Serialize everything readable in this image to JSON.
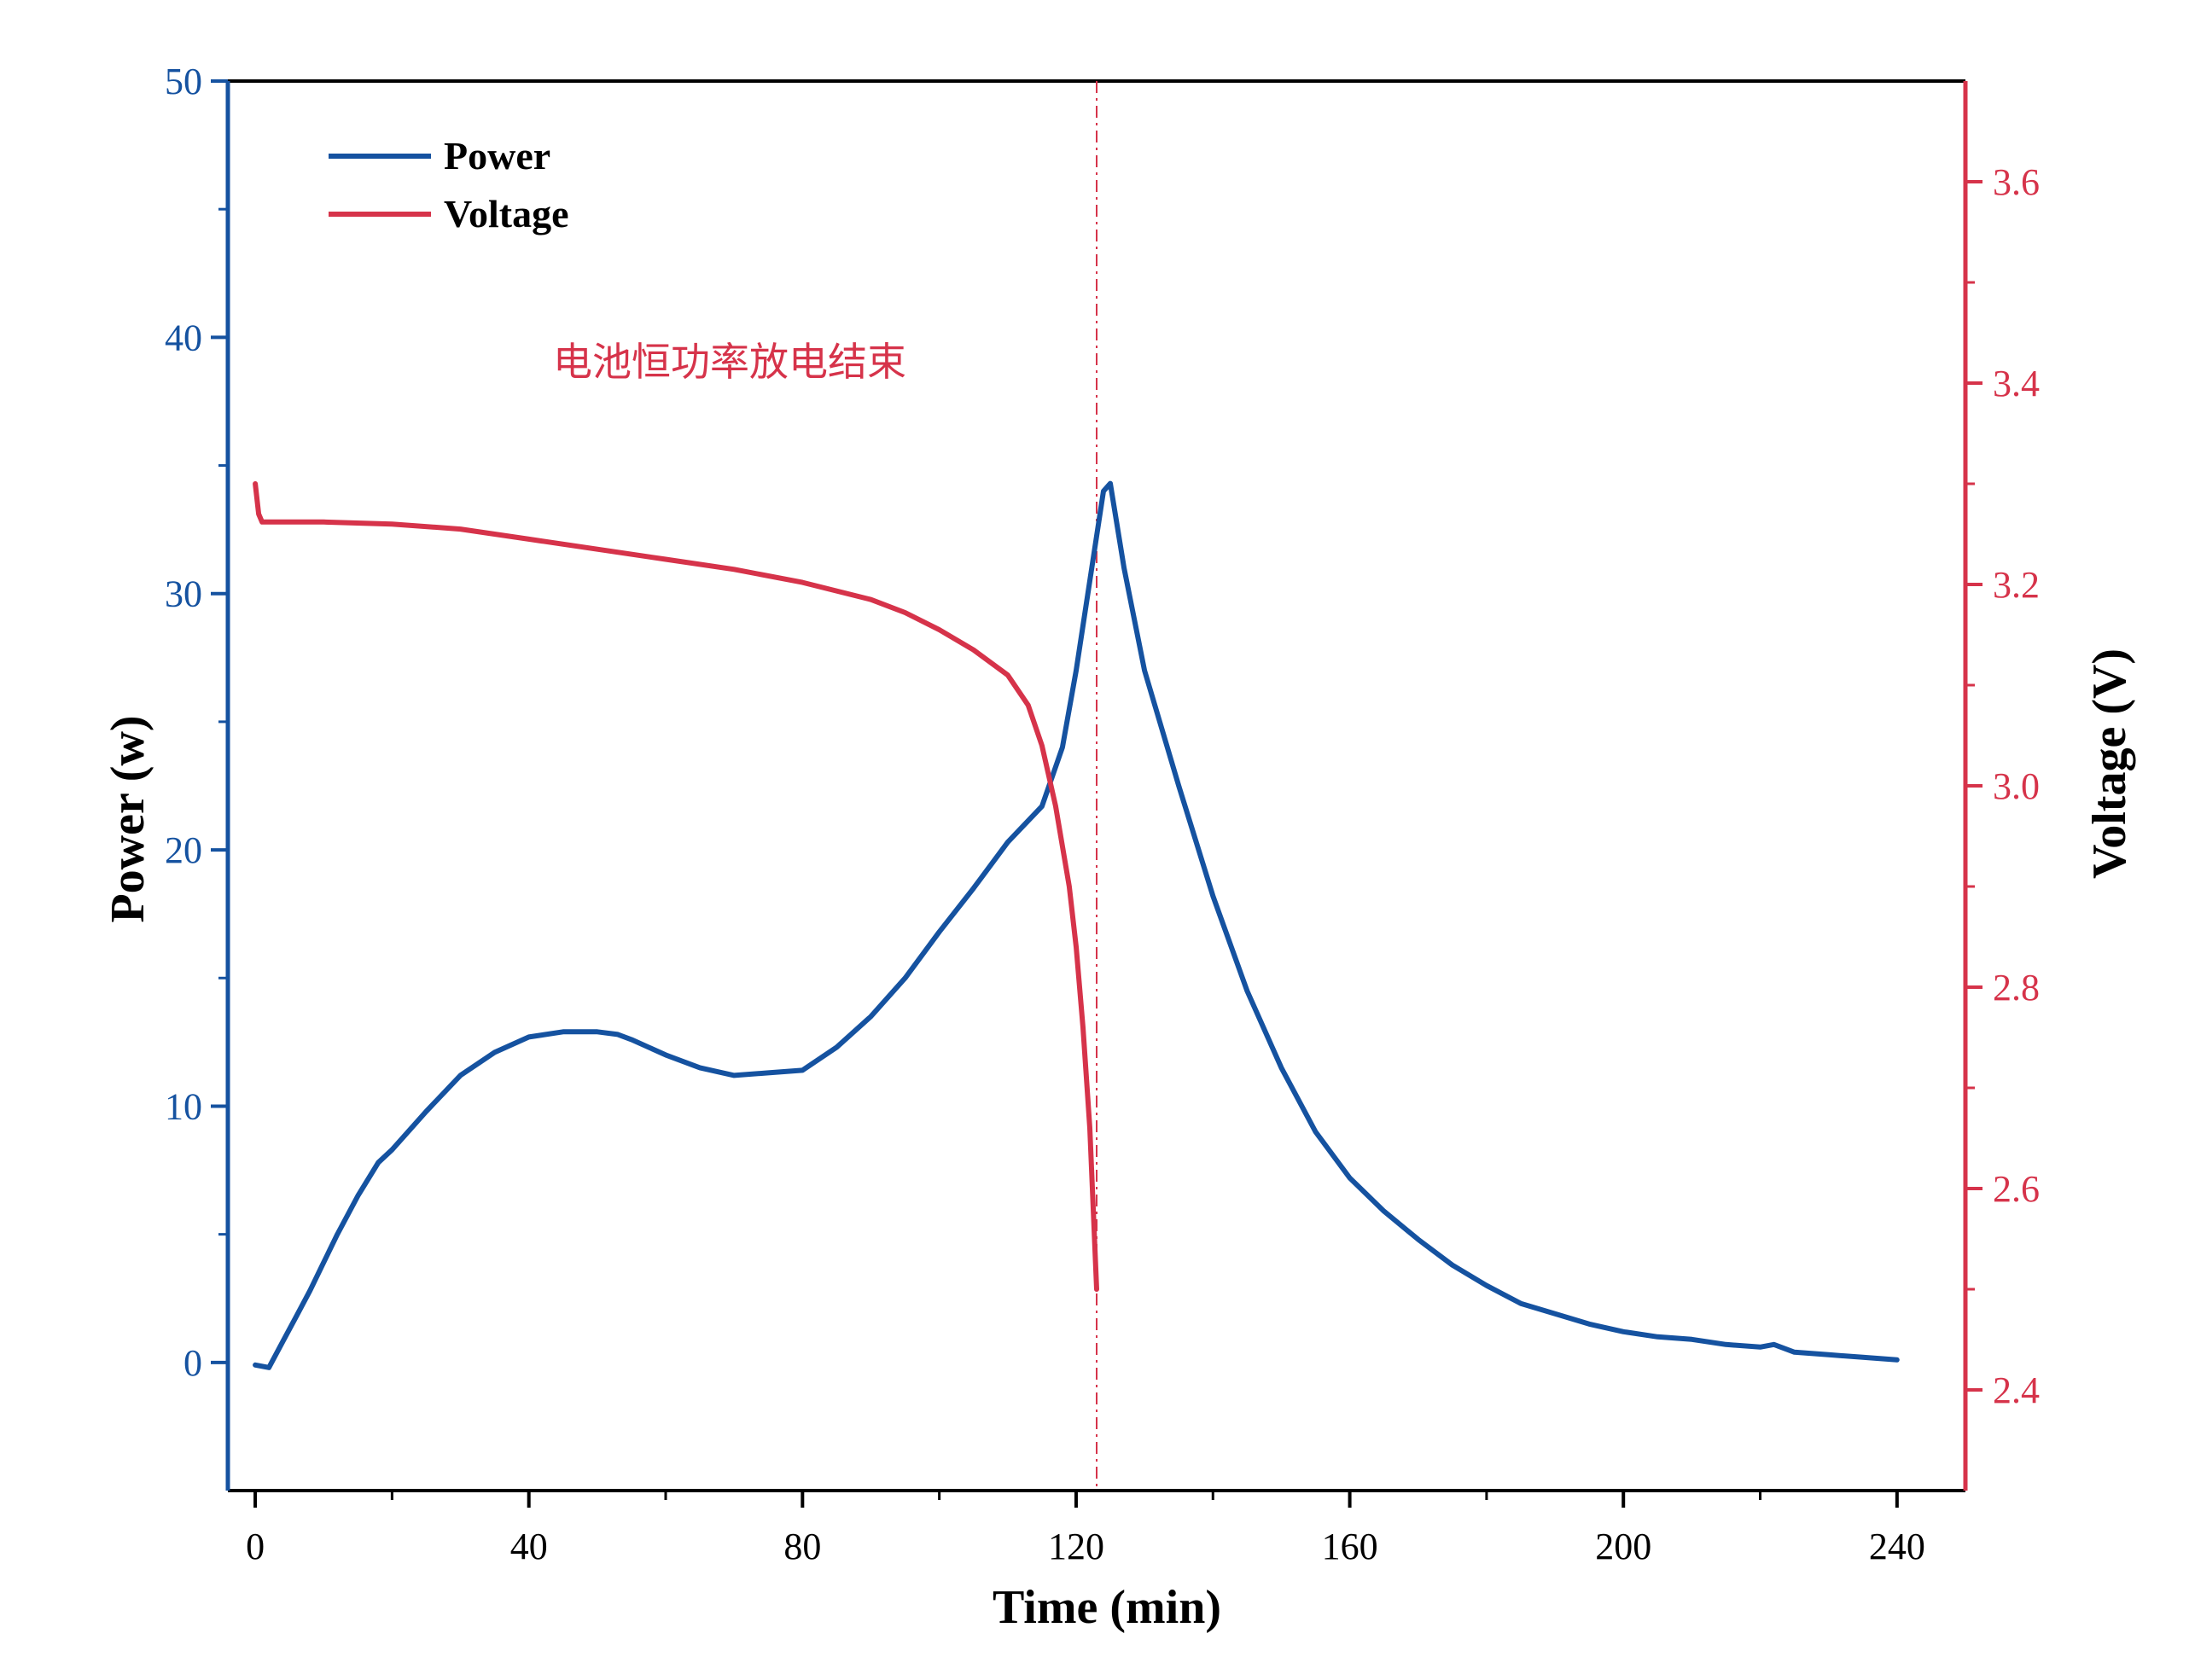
{
  "chart_data": {
    "type": "line",
    "title": "",
    "xlabel": "Time (min)",
    "ylabel_left": "Power (w)",
    "ylabel_right": "Voltage (V)",
    "xlim": [
      -4,
      250
    ],
    "ylim_left": [
      -5,
      50
    ],
    "ylim_right": [
      2.3,
      3.7
    ],
    "xticks": [
      0,
      40,
      80,
      120,
      160,
      200,
      240
    ],
    "yticks_left": [
      0,
      10,
      20,
      30,
      40,
      50
    ],
    "yticks_right": [
      2.4,
      2.6,
      2.8,
      3.0,
      3.2,
      3.4,
      3.6
    ],
    "legend_position": "top-left",
    "grid": false,
    "annotation": "电池恒功率放电结束",
    "vline_x": 123,
    "colors": {
      "power": "#1552a0",
      "voltage": "#d6334a",
      "axis": "#000000"
    },
    "series": [
      {
        "name": "Power",
        "axis": "left",
        "x": [
          0,
          2,
          4,
          6,
          8,
          10,
          12,
          15,
          18,
          20,
          25,
          30,
          35,
          40,
          45,
          50,
          53,
          55,
          60,
          65,
          70,
          75,
          80,
          85,
          90,
          95,
          100,
          105,
          110,
          115,
          118,
          120,
          122,
          124,
          125,
          127,
          130,
          135,
          140,
          145,
          150,
          155,
          160,
          165,
          170,
          175,
          180,
          185,
          190,
          195,
          200,
          205,
          210,
          215,
          220,
          222,
          225,
          230,
          235,
          240
        ],
        "y": [
          -0.1,
          -0.2,
          0.8,
          1.8,
          2.8,
          3.9,
          5.0,
          6.5,
          7.8,
          8.3,
          9.8,
          11.2,
          12.1,
          12.7,
          12.9,
          12.9,
          12.8,
          12.6,
          12.0,
          11.5,
          11.2,
          11.3,
          11.4,
          12.3,
          13.5,
          15.0,
          16.8,
          18.5,
          20.3,
          21.7,
          24.0,
          27.0,
          30.5,
          34.0,
          34.3,
          31.0,
          27.0,
          22.5,
          18.2,
          14.5,
          11.5,
          9.0,
          7.2,
          5.9,
          4.8,
          3.8,
          3.0,
          2.3,
          1.9,
          1.5,
          1.2,
          1.0,
          0.9,
          0.7,
          0.6,
          0.7,
          0.4,
          0.3,
          0.2,
          0.1
        ]
      },
      {
        "name": "Voltage",
        "axis": "right",
        "x": [
          0,
          0.5,
          1,
          3,
          10,
          20,
          30,
          40,
          50,
          60,
          70,
          80,
          90,
          95,
          100,
          105,
          110,
          113,
          115,
          117,
          119,
          120,
          121,
          122,
          122.5,
          123
        ],
        "y": [
          3.3,
          3.27,
          3.262,
          3.262,
          3.262,
          3.26,
          3.255,
          3.245,
          3.235,
          3.225,
          3.215,
          3.202,
          3.185,
          3.172,
          3.155,
          3.135,
          3.11,
          3.08,
          3.04,
          2.98,
          2.9,
          2.84,
          2.76,
          2.66,
          2.58,
          2.5
        ]
      }
    ]
  }
}
